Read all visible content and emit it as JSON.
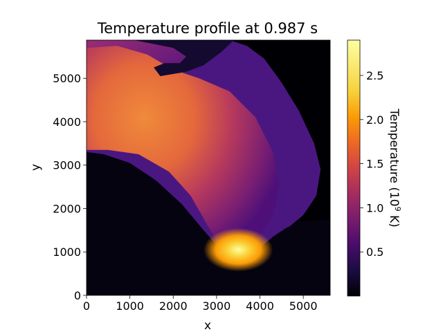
{
  "chart_data": {
    "type": "heatmap",
    "title": "Temperature profile at 0.987 s",
    "xlabel": "x",
    "ylabel": "y",
    "xlim": [
      0,
      5620
    ],
    "ylim": [
      0,
      5880
    ],
    "xticks": [
      0,
      1000,
      2000,
      3000,
      4000,
      5000
    ],
    "yticks": [
      0,
      1000,
      2000,
      3000,
      4000,
      5000
    ],
    "colorbar": {
      "label_main": "Temperature (10",
      "label_sup": "9",
      "label_end": " K)",
      "colormap": "inferno",
      "range": [
        0.0,
        2.9
      ],
      "ticks": [
        0.5,
        1.0,
        1.5,
        2.0,
        2.5
      ],
      "tick_labels": [
        "0.5",
        "1.0",
        "1.5",
        "2.0",
        "2.5"
      ]
    },
    "field": {
      "description_values": "approximate temperature levels in 10^9 K",
      "background": 0.0,
      "envelope": 0.5,
      "upper_region": 1.1,
      "shocked_shell": 1.8,
      "hot_spot": 2.9,
      "hot_spot_center": [
        3500,
        1050
      ]
    }
  }
}
